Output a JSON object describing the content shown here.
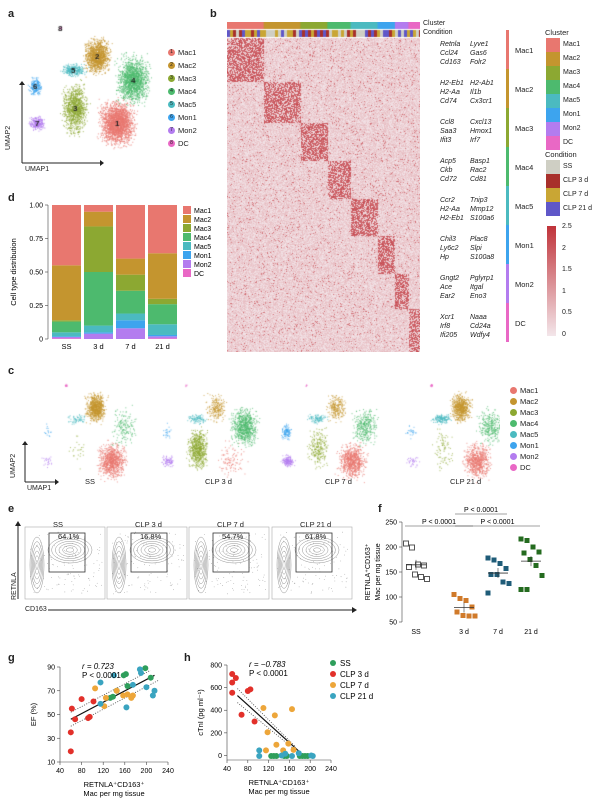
{
  "panel_labels": {
    "a": "a",
    "b": "b",
    "c": "c",
    "d": "d",
    "e": "e",
    "f": "f",
    "g": "g",
    "h": "h"
  },
  "clusters": [
    {
      "num": "1",
      "name": "Mac1",
      "color": "#E8776F"
    },
    {
      "num": "2",
      "name": "Mac2",
      "color": "#C4952F"
    },
    {
      "num": "3",
      "name": "Mac3",
      "color": "#8CA832"
    },
    {
      "num": "4",
      "name": "Mac4",
      "color": "#4DBA6E"
    },
    {
      "num": "5",
      "name": "Mac5",
      "color": "#4BBAC0"
    },
    {
      "num": "6",
      "name": "Mon1",
      "color": "#3DA4EE"
    },
    {
      "num": "7",
      "name": "Mon2",
      "color": "#B37CEF"
    },
    {
      "num": "8",
      "name": "DC",
      "color": "#E968C5"
    }
  ],
  "umap_axes": {
    "x": "UMAP1",
    "y": "UMAP2"
  },
  "heatmap": {
    "track_labels": [
      "Cluster",
      "Condition"
    ],
    "gene_groups": [
      {
        "cluster": "Mac1",
        "genes": [
          "Retnla",
          "Lyve1",
          "Ccl24",
          "Gas6",
          "Cd163",
          "Folr2"
        ]
      },
      {
        "cluster": "Mac2",
        "genes": [
          "H2-Eb1",
          "H2-Ab1",
          "H2-Aa",
          "Il1b",
          "Cd74",
          "Cx3cr1"
        ]
      },
      {
        "cluster": "Mac3",
        "genes": [
          "Ccl8",
          "Cxcl13",
          "Saa3",
          "Hmox1",
          "Ifit3",
          "Irf7"
        ]
      },
      {
        "cluster": "Mac4",
        "genes": [
          "Acp5",
          "Basp1",
          "Ckb",
          "Rac2",
          "Cd72",
          "Cd81"
        ]
      },
      {
        "cluster": "Mac5",
        "genes": [
          "Ccr2",
          "Tnip3",
          "H2-Aa",
          "Mmp12",
          "H2-Eb1",
          "S100a6"
        ]
      },
      {
        "cluster": "Mon1",
        "genes": [
          "Chil3",
          "Plac8",
          "Ly6c2",
          "Slpi",
          "Hp",
          "S100a8"
        ]
      },
      {
        "cluster": "Mon2",
        "genes": [
          "Gngt2",
          "Pglyrp1",
          "Ace",
          "Itgal",
          "Ear2",
          "Eno3"
        ]
      },
      {
        "cluster": "DC",
        "genes": [
          "Xcr1",
          "Naaa",
          "Irf8",
          "Cd24a",
          "Ifi205",
          "Wdfy4"
        ]
      }
    ],
    "legend_cluster_title": "Cluster",
    "legend_condition_title": "Condition",
    "conditions": [
      {
        "name": "SS",
        "color": "#CFCFC4"
      },
      {
        "name": "CLP 3 d",
        "color": "#A8302B"
      },
      {
        "name": "CLP 7 d",
        "color": "#C9A634"
      },
      {
        "name": "CLP 21 d",
        "color": "#5F57C8"
      }
    ],
    "colorbar": {
      "ticks": [
        "2.5",
        "2",
        "1.5",
        "1",
        "0.5",
        "0"
      ],
      "min": 0,
      "max": 2.5,
      "low_color": "#F3E6EA",
      "high_color": "#C0333A"
    }
  },
  "umap_conditions": [
    "SS",
    "CLP 3 d",
    "CLP 7 d",
    "CLP 21 d"
  ],
  "flow": {
    "y_axis": "RETNLA",
    "x_axis": "CD163",
    "panels": [
      {
        "title": "SS",
        "pct": "64.1%"
      },
      {
        "title": "CLP 3 d",
        "pct": "16.8%"
      },
      {
        "title": "CLP 7 d",
        "pct": "54.7%"
      },
      {
        "title": "CLP 21 d",
        "pct": "61.8%"
      }
    ]
  },
  "chart_data": [
    {
      "panel": "d",
      "type": "bar",
      "stacked": true,
      "categories": [
        "SS",
        "3 d",
        "7 d",
        "21 d"
      ],
      "ylabel": "Cell type distribution",
      "ylim": [
        0,
        1
      ],
      "yticks": [
        "0",
        "0.25",
        "0.50",
        "0.75",
        "1.00"
      ],
      "series": [
        {
          "name": "DC",
          "values": [
            0.005,
            0,
            0,
            0.005
          ]
        },
        {
          "name": "Mon2",
          "values": [
            0.01,
            0.04,
            0.08,
            0.015
          ]
        },
        {
          "name": "Mon1",
          "values": [
            0.005,
            0.01,
            0.06,
            0.01
          ]
        },
        {
          "name": "Mac5",
          "values": [
            0.03,
            0.05,
            0.05,
            0.08
          ]
        },
        {
          "name": "Mac4",
          "values": [
            0.08,
            0.4,
            0.17,
            0.15
          ]
        },
        {
          "name": "Mac3",
          "values": [
            0.01,
            0.34,
            0.12,
            0.04
          ]
        },
        {
          "name": "Mac2",
          "values": [
            0.41,
            0.11,
            0.12,
            0.34
          ]
        },
        {
          "name": "Mac1",
          "values": [
            0.45,
            0.05,
            0.4,
            0.36
          ]
        }
      ]
    },
    {
      "panel": "f",
      "type": "scatter",
      "categories": [
        "SS",
        "3 d",
        "7 d",
        "21 d"
      ],
      "ylabel_line1": "RETNLA⁺CD163⁺",
      "ylabel_line2": "Mac per mg tissue",
      "ylim": [
        50,
        250
      ],
      "yticks": [
        "50",
        "100",
        "150",
        "200",
        "250"
      ],
      "groups": [
        {
          "values": [
            207,
            199,
            165,
            163,
            160,
            145,
            140,
            136
          ],
          "color": "#555555",
          "hollow": true
        },
        {
          "values": [
            105,
            97,
            93,
            80,
            70,
            63,
            62,
            62
          ],
          "color": "#D07A2A",
          "hollow": false
        },
        {
          "values": [
            178,
            174,
            167,
            157,
            145,
            145,
            130,
            127,
            108
          ],
          "color": "#1F5C78",
          "hollow": false
        },
        {
          "values": [
            216,
            213,
            200,
            190,
            188,
            175,
            163,
            143,
            115,
            115
          ],
          "color": "#246B1F",
          "hollow": false
        }
      ],
      "comparisons": [
        {
          "from": "SS",
          "to": "3 d",
          "label": "P < 0.0001"
        },
        {
          "from": "3 d",
          "to": "21 d",
          "label": "P < 0.0001"
        },
        {
          "from": "3 d",
          "to": "7 d",
          "label": "P < 0.0001"
        }
      ]
    },
    {
      "panel": "g",
      "type": "scatter",
      "xlabel_line1": "RETNLA⁺CD163⁺",
      "xlabel_line2": "Mac per mg tissue",
      "ylabel": "EF (%)",
      "xlim": [
        40,
        240
      ],
      "ylim": [
        10,
        90
      ],
      "xticks": [
        "40",
        "80",
        "120",
        "160",
        "200",
        "240"
      ],
      "yticks": [
        "10",
        "30",
        "50",
        "70",
        "90"
      ],
      "r": "r = 0.723",
      "p": "P < 0.0001",
      "series": [
        {
          "name": "SS",
          "color": "#2E9E5B",
          "points": [
            [
              133,
              64
            ],
            [
              138,
              65
            ],
            [
              145,
              70
            ],
            [
              158,
              83
            ],
            [
              162,
              84
            ],
            [
              165,
              74
            ],
            [
              208,
              81
            ],
            [
              198,
              89
            ]
          ]
        },
        {
          "name": "CLP 3 d",
          "color": "#E2302A",
          "points": [
            [
              60,
              19
            ],
            [
              60,
              35
            ],
            [
              62,
              55
            ],
            [
              68,
              46
            ],
            [
              80,
              63
            ],
            [
              92,
              47
            ],
            [
              95,
              48
            ],
            [
              102,
              61
            ]
          ]
        },
        {
          "name": "CLP 7 d",
          "color": "#EDA63A",
          "points": [
            [
              105,
              72
            ],
            [
              122,
              57
            ],
            [
              125,
              64
            ],
            [
              145,
              70
            ],
            [
              157,
              66
            ],
            [
              165,
              67
            ],
            [
              172,
              64
            ],
            [
              175,
              66
            ]
          ]
        },
        {
          "name": "CLP 21 d",
          "color": "#3AA4C0",
          "points": [
            [
              115,
              59
            ],
            [
              115,
              77
            ],
            [
              140,
              83
            ],
            [
              163,
              56
            ],
            [
              175,
              75
            ],
            [
              188,
              88
            ],
            [
              190,
              85
            ],
            [
              200,
              73
            ],
            [
              212,
              66
            ],
            [
              215,
              70
            ]
          ]
        }
      ],
      "fit": [
        [
          60,
          46
        ],
        [
          215,
          83
        ]
      ]
    },
    {
      "panel": "h",
      "type": "scatter",
      "xlabel_line1": "RETNLA⁺CD163⁺",
      "xlabel_line2": "Mac per mg tissue",
      "ylabel": "cTnI (pg ml⁻¹)",
      "xlim": [
        40,
        240
      ],
      "ylim": [
        -40,
        800
      ],
      "xticks": [
        "40",
        "80",
        "120",
        "160",
        "200",
        "240"
      ],
      "yticks": [
        "0",
        "200",
        "400",
        "600",
        "800"
      ],
      "r": "r = −0.783",
      "p": "P < 0.0001",
      "legend": "top-right",
      "series": [
        {
          "name": "SS",
          "color": "#2E9E5B",
          "points": [
            [
              125,
              -5
            ],
            [
              130,
              -5
            ],
            [
              135,
              -5
            ],
            [
              150,
              -5
            ],
            [
              155,
              -5
            ],
            [
              180,
              -5
            ],
            [
              185,
              -5
            ],
            [
              190,
              -5
            ],
            [
              195,
              -5
            ]
          ]
        },
        {
          "name": "CLP 3 d",
          "color": "#E2302A",
          "points": [
            [
              50,
              720
            ],
            [
              50,
              645
            ],
            [
              50,
              555
            ],
            [
              57,
              685
            ],
            [
              68,
              360
            ],
            [
              80,
              570
            ],
            [
              85,
              585
            ],
            [
              93,
              300
            ]
          ]
        },
        {
          "name": "CLP 7 d",
          "color": "#EDA63A",
          "points": [
            [
              110,
              420
            ],
            [
              118,
              205
            ],
            [
              115,
              45
            ],
            [
              132,
              355
            ],
            [
              135,
              95
            ],
            [
              148,
              45
            ],
            [
              158,
              105
            ],
            [
              165,
              410
            ],
            [
              168,
              50
            ]
          ]
        },
        {
          "name": "CLP 21 d",
          "color": "#3AA4C0",
          "points": [
            [
              102,
              45
            ],
            [
              102,
              -5
            ],
            [
              145,
              0
            ],
            [
              152,
              15
            ],
            [
              165,
              -5
            ],
            [
              178,
              20
            ],
            [
              202,
              0
            ],
            [
              205,
              -5
            ]
          ]
        }
      ],
      "fit": [
        [
          60,
          530
        ],
        [
          180,
          30
        ]
      ]
    }
  ]
}
